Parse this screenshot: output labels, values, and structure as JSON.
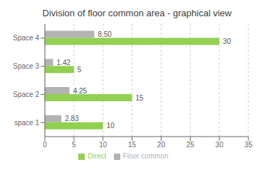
{
  "chart_data": {
    "type": "bar",
    "orientation": "horizontal",
    "title": "Division of floor common area - graphical view",
    "categories": [
      "space 1",
      "Space 2",
      "Space 3",
      "Space 4"
    ],
    "series": [
      {
        "name": "Floor common",
        "color": "#b3b3b3",
        "values": [
          2.83,
          4.25,
          1.42,
          8.5
        ],
        "value_labels": [
          "2.83",
          "4.25",
          "1.42",
          "8.50"
        ]
      },
      {
        "name": "Direct",
        "color": "#92d050",
        "values": [
          10,
          15,
          5,
          30
        ]
      }
    ],
    "xlim": [
      0,
      35
    ],
    "xticks": [
      0,
      5,
      10,
      15,
      20,
      25,
      30,
      35
    ],
    "grid": true,
    "legend": "bottom",
    "data_labels": true
  }
}
